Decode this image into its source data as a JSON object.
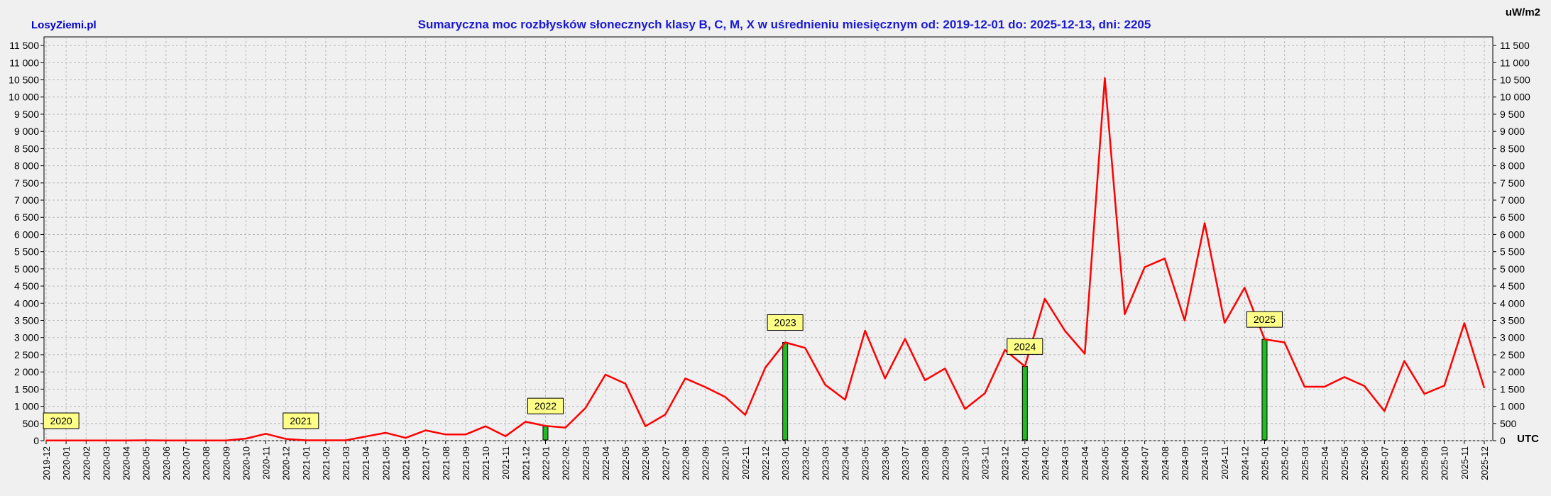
{
  "brand": "LosyZiemi.pl",
  "colors": {
    "brand": "#0000cc",
    "title": "#1a1ad4",
    "line": "#ff0000",
    "bar": "#22bb22",
    "bar_border": "#000000",
    "tag_fill": "#ffff88",
    "grid": "#b8b8b8",
    "plot_bg": "#f0f0f0"
  },
  "chart_data": {
    "type": "line",
    "title": "Sumaryczna moc rozbłysków słonecznych klasy B, C, M, X w uśrednieniu miesięcznym od: 2019-12-01 do: 2025-12-13, dni: 2205",
    "ylabel": "uW/m2",
    "xlabel": "UTC",
    "ylim": [
      0,
      11750
    ],
    "grid": true,
    "y_ticks": [
      0,
      500,
      1000,
      1500,
      2000,
      2500,
      3000,
      3500,
      4000,
      4500,
      5000,
      5500,
      6000,
      6500,
      7000,
      7500,
      8000,
      8500,
      9000,
      9500,
      10000,
      10500,
      11000,
      11500
    ],
    "y_tick_labels": [
      "0",
      "500",
      "1 000",
      "1 500",
      "2 000",
      "2 500",
      "3 000",
      "3 500",
      "4 000",
      "4 500",
      "5 000",
      "5 500",
      "6 000",
      "6 500",
      "7 000",
      "7 500",
      "8 000",
      "8 500",
      "9 000",
      "9 500",
      "10 000",
      "10 500",
      "11 000",
      "11 500"
    ],
    "categories": [
      "2019-12",
      "2020-01",
      "2020-02",
      "2020-03",
      "2020-04",
      "2020-05",
      "2020-06",
      "2020-07",
      "2020-08",
      "2020-09",
      "2020-10",
      "2020-11",
      "2020-12",
      "2021-01",
      "2021-02",
      "2021-03",
      "2021-04",
      "2021-05",
      "2021-06",
      "2021-07",
      "2021-08",
      "2021-09",
      "2021-10",
      "2021-11",
      "2021-12",
      "2022-01",
      "2022-02",
      "2022-03",
      "2022-04",
      "2022-05",
      "2022-06",
      "2022-07",
      "2022-08",
      "2022-09",
      "2022-10",
      "2022-11",
      "2022-12",
      "2023-01",
      "2023-02",
      "2023-03",
      "2023-04",
      "2023-05",
      "2023-06",
      "2023-07",
      "2023-08",
      "2023-09",
      "2023-10",
      "2023-11",
      "2023-12",
      "2024-01",
      "2024-02",
      "2024-03",
      "2024-04",
      "2024-05",
      "2024-06",
      "2024-07",
      "2024-08",
      "2024-09",
      "2024-10",
      "2024-11",
      "2024-12",
      "2025-01",
      "2025-02",
      "2025-03",
      "2025-04",
      "2025-05",
      "2025-06",
      "2025-07",
      "2025-08",
      "2025-09",
      "2025-10",
      "2025-11",
      "2025-12"
    ],
    "series": [
      {
        "values": [
          5,
          5,
          5,
          5,
          5,
          10,
          5,
          5,
          5,
          5,
          60,
          200,
          50,
          10,
          10,
          10,
          120,
          230,
          80,
          300,
          180,
          180,
          420,
          130,
          550,
          430,
          380,
          950,
          1920,
          1660,
          420,
          760,
          1810,
          1560,
          1270,
          750,
          2120,
          2860,
          2700,
          1630,
          1190,
          3200,
          1810,
          2960,
          1760,
          2100,
          920,
          1380,
          2640,
          2160,
          4130,
          3200,
          2530,
          10550,
          3680,
          5050,
          5300,
          3500,
          6330,
          3430,
          4450,
          2950,
          2860,
          1570,
          1570,
          1850,
          1590,
          860,
          2320,
          1360,
          1600,
          3420,
          1530
        ]
      }
    ],
    "year_markers": [
      {
        "label": "2020",
        "index": 1,
        "value": 0
      },
      {
        "label": "2021",
        "index": 13,
        "value": 0
      },
      {
        "label": "2022",
        "index": 25,
        "value": 430
      },
      {
        "label": "2023",
        "index": 37,
        "value": 2860
      },
      {
        "label": "2024",
        "index": 49,
        "value": 2160
      },
      {
        "label": "2025",
        "index": 61,
        "value": 2950
      }
    ]
  }
}
